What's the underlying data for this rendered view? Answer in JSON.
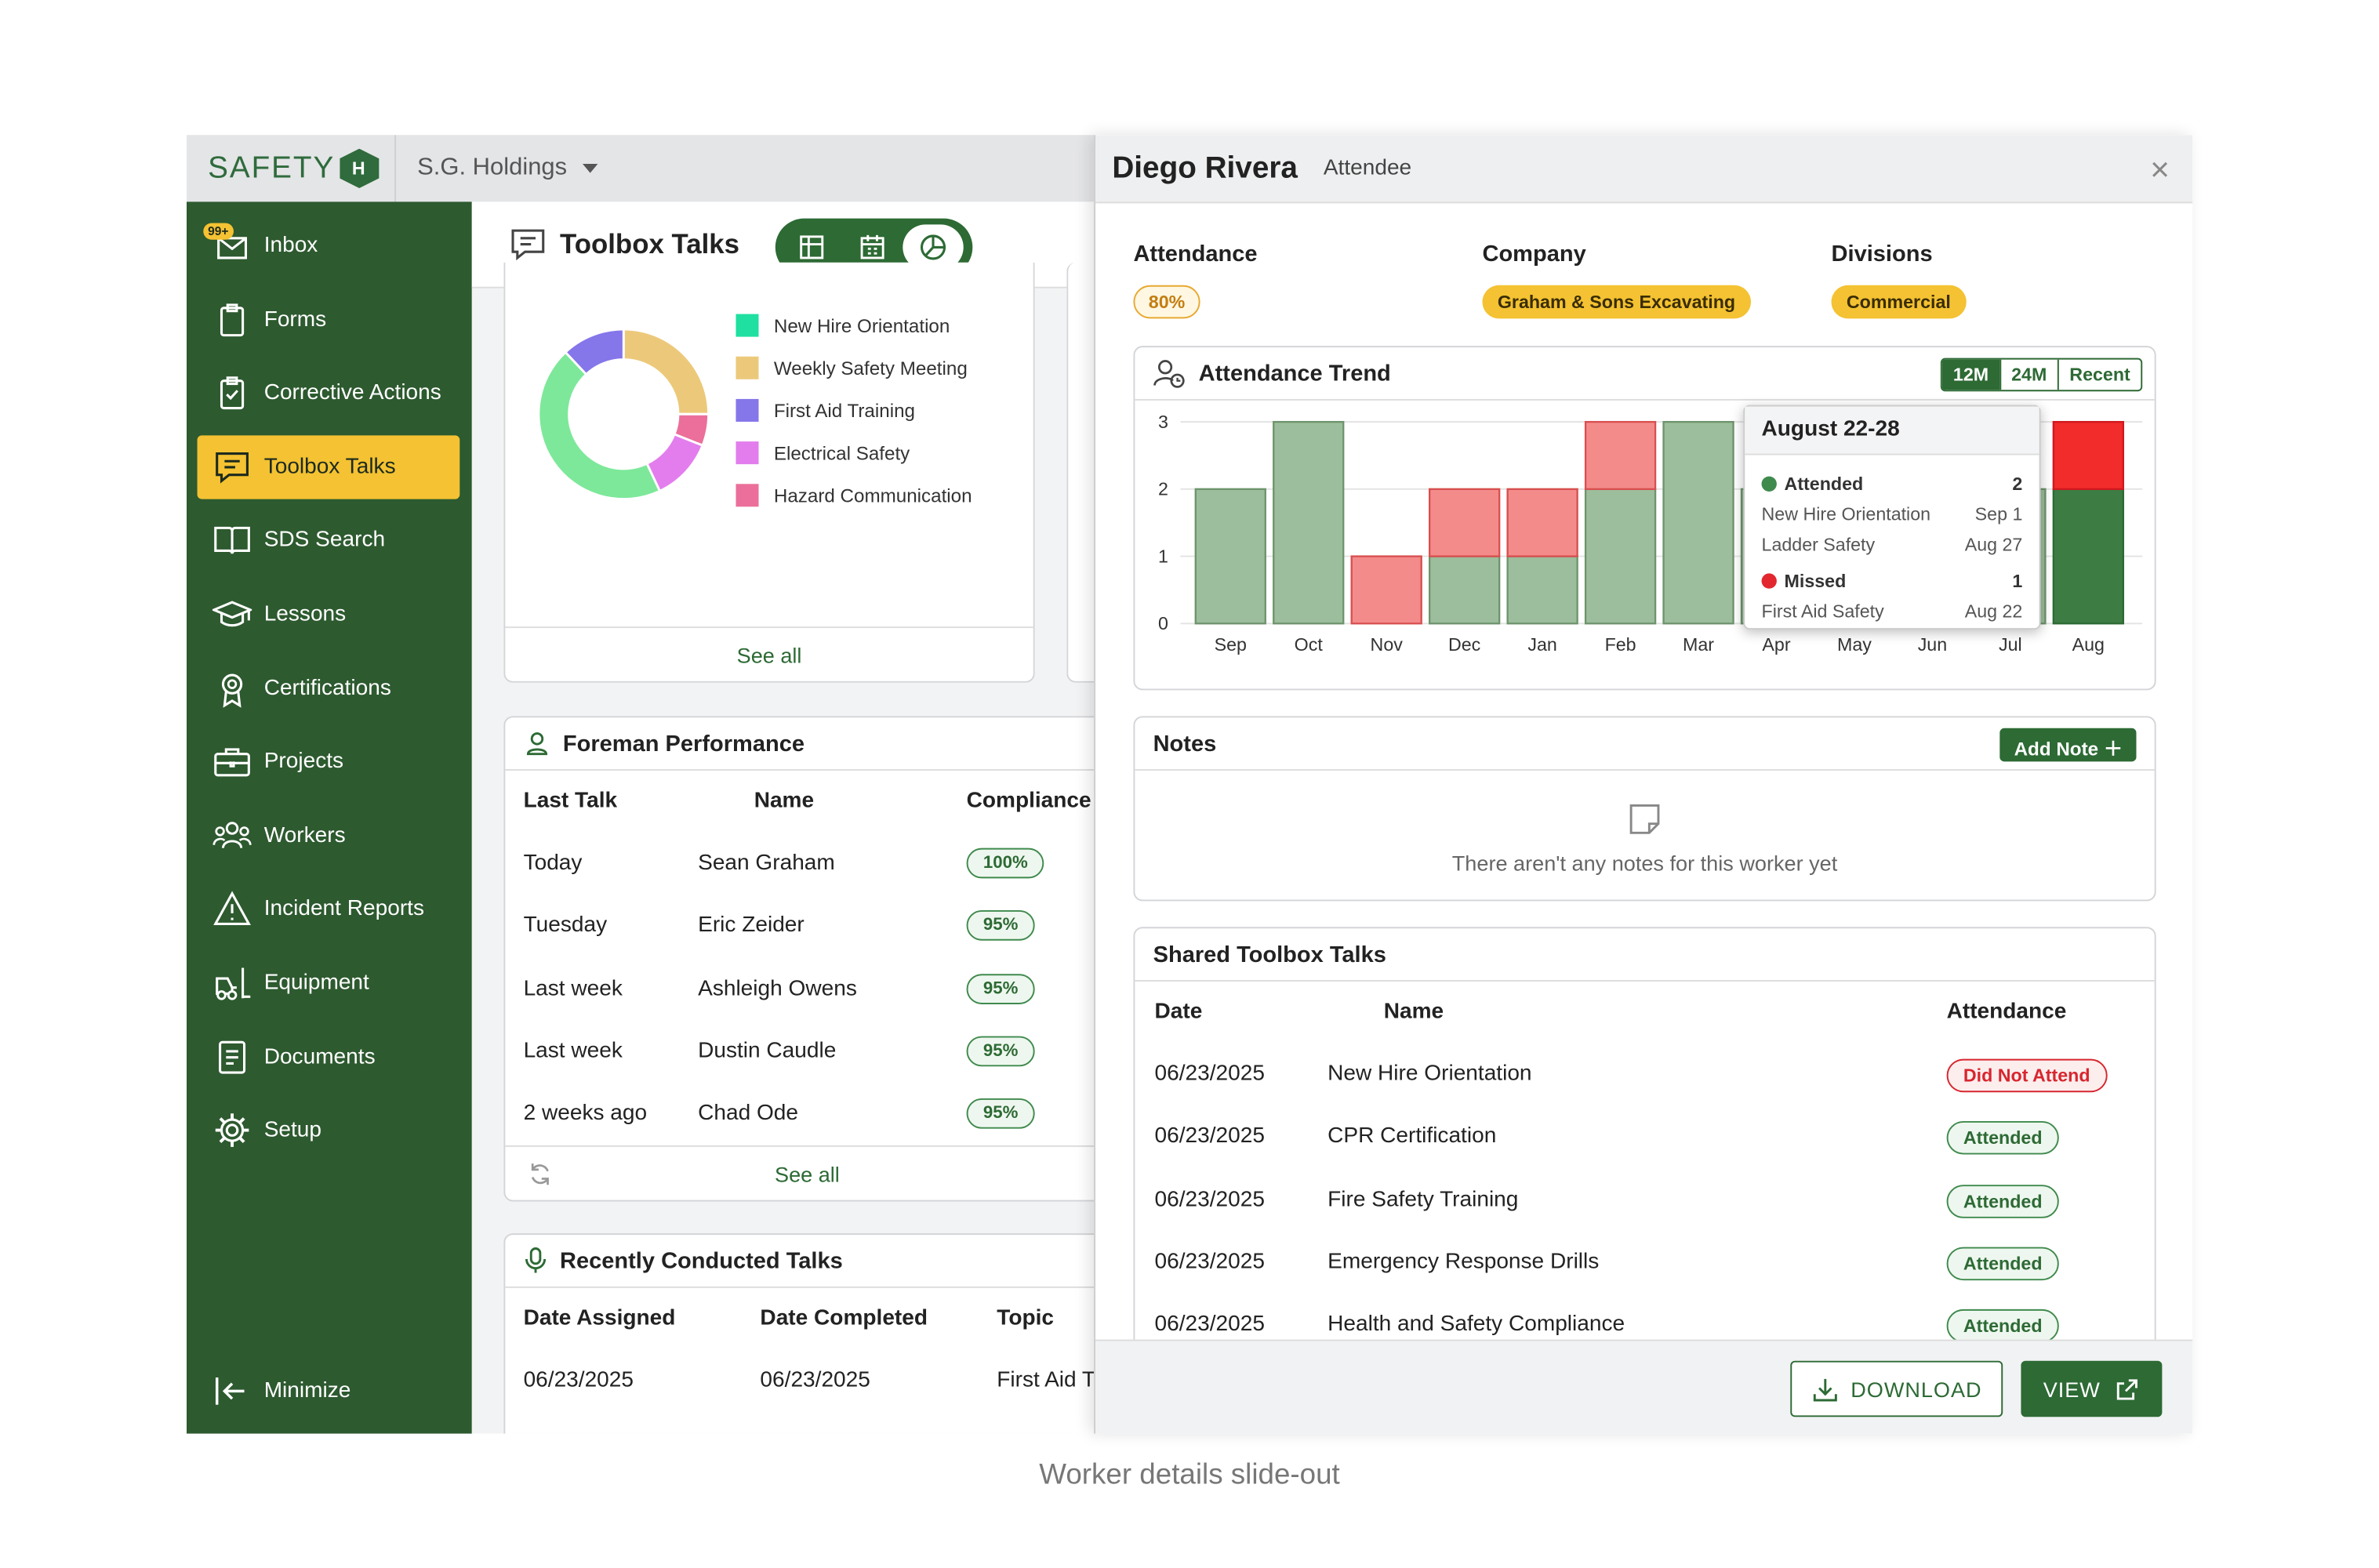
{
  "app": {
    "logo_text": "SAFETY",
    "logo_mark": "H",
    "org": "S.G. Holdings"
  },
  "sidebar": {
    "inbox_badge": "99+",
    "items": [
      {
        "label": "Inbox",
        "icon": "inbox-icon"
      },
      {
        "label": "Forms",
        "icon": "clipboard-icon"
      },
      {
        "label": "Corrective Actions",
        "icon": "clipboard-check-icon"
      },
      {
        "label": "Toolbox Talks",
        "icon": "chat-icon",
        "active": true
      },
      {
        "label": "SDS Search",
        "icon": "book-icon"
      },
      {
        "label": "Lessons",
        "icon": "graduation-cap-icon"
      },
      {
        "label": "Certifications",
        "icon": "award-icon"
      },
      {
        "label": "Projects",
        "icon": "briefcase-icon"
      },
      {
        "label": "Workers",
        "icon": "users-icon"
      },
      {
        "label": "Incident Reports",
        "icon": "warning-icon"
      },
      {
        "label": "Equipment",
        "icon": "forklift-icon"
      },
      {
        "label": "Documents",
        "icon": "document-icon"
      },
      {
        "label": "Setup",
        "icon": "gear-icon"
      }
    ],
    "minimize": "Minimize"
  },
  "main": {
    "title": "Toolbox Talks",
    "donut": {
      "legend": [
        {
          "label": "New Hire Orientation",
          "color": "#1fe0a0"
        },
        {
          "label": "Weekly Safety Meeting",
          "color": "#ecc97a"
        },
        {
          "label": "First Aid Training",
          "color": "#8576ea"
        },
        {
          "label": "Electrical Safety",
          "color": "#e37ded"
        },
        {
          "label": "Hazard Communication",
          "color": "#eb6f9a"
        }
      ],
      "see_all": "See all"
    },
    "foreman": {
      "title": "Foreman Performance",
      "headers": [
        "Last Talk",
        "Name",
        "Compliance"
      ],
      "rows": [
        {
          "last": "Today",
          "name": "Sean Graham",
          "pct": "100%"
        },
        {
          "last": "Tuesday",
          "name": "Eric Zeider",
          "pct": "95%"
        },
        {
          "last": "Last week",
          "name": "Ashleigh Owens",
          "pct": "95%"
        },
        {
          "last": "Last week",
          "name": "Dustin Caudle",
          "pct": "95%"
        },
        {
          "last": "2 weeks ago",
          "name": "Chad Ode",
          "pct": "95%"
        }
      ],
      "see_all": "See all"
    },
    "recent": {
      "title": "Recently Conducted Talks",
      "headers": [
        "Date Assigned",
        "Date Completed",
        "Topic"
      ],
      "row": {
        "assigned": "06/23/2025",
        "completed": "06/23/2025",
        "topic": "First Aid T"
      }
    }
  },
  "panel": {
    "name": "Diego Rivera",
    "role": "Attendee",
    "attendance_label": "Attendance",
    "attendance_value": "80%",
    "company_label": "Company",
    "company_value": "Graham & Sons Excavating",
    "divisions_label": "Divisions",
    "divisions_value": "Commercial",
    "trend": {
      "title": "Attendance Trend",
      "ranges": [
        "12M",
        "24M",
        "Recent"
      ],
      "active_range": "12M"
    },
    "tooltip": {
      "title": "August 22-28",
      "attended_label": "Attended",
      "attended_count": "2",
      "attended_items": [
        {
          "name": "New Hire Orientation",
          "date": "Sep 1"
        },
        {
          "name": "Ladder Safety",
          "date": "Aug 27"
        }
      ],
      "missed_label": "Missed",
      "missed_count": "1",
      "missed_items": [
        {
          "name": "First Aid Safety",
          "date": "Aug 22"
        }
      ]
    },
    "notes": {
      "title": "Notes",
      "add": "Add Note",
      "empty": "There aren't any notes for this worker yet"
    },
    "shared": {
      "title": "Shared Toolbox Talks",
      "headers": [
        "Date",
        "Name",
        "Attendance"
      ],
      "rows": [
        {
          "date": "06/23/2025",
          "name": "New Hire Orientation",
          "status": "Did Not Attend"
        },
        {
          "date": "06/23/2025",
          "name": "CPR Certification",
          "status": "Attended"
        },
        {
          "date": "06/23/2025",
          "name": "Fire Safety Training",
          "status": "Attended"
        },
        {
          "date": "06/23/2025",
          "name": "Emergency Response Drills",
          "status": "Attended"
        },
        {
          "date": "06/23/2025",
          "name": "Health and Safety Compliance",
          "status": "Attended"
        }
      ]
    },
    "download": "DOWNLOAD",
    "view": "VIEW"
  },
  "caption": "Worker details slide-out",
  "chart_data": [
    {
      "type": "pie",
      "title": "",
      "categories": [
        "New Hire Orientation",
        "Weekly Safety Meeting",
        "First Aid Training",
        "Electrical Safety",
        "Hazard Communication"
      ],
      "values": [
        45,
        25,
        12,
        12,
        6
      ],
      "colors": [
        "#7de89a",
        "#ecc97a",
        "#8576ea",
        "#e37ded",
        "#eb6f9a"
      ]
    },
    {
      "type": "bar",
      "title": "Attendance Trend",
      "categories": [
        "Sep",
        "Oct",
        "Nov",
        "Dec",
        "Jan",
        "Feb",
        "Mar",
        "Apr",
        "May",
        "Jun",
        "Jul",
        "Aug"
      ],
      "series": [
        {
          "name": "Attended",
          "values": [
            2,
            3,
            0,
            1,
            1,
            2,
            3,
            2,
            2,
            2,
            2,
            2
          ],
          "color": "#9dbe9c"
        },
        {
          "name": "Missed",
          "values": [
            0,
            0,
            1,
            1,
            1,
            1,
            0,
            0,
            0,
            0,
            0,
            1
          ],
          "color": "#f48b8b"
        }
      ],
      "stacked": true,
      "highlight_category": "Aug",
      "ylim": [
        0,
        3
      ],
      "yticks": [
        0,
        1,
        2,
        3
      ],
      "grid": true
    }
  ]
}
